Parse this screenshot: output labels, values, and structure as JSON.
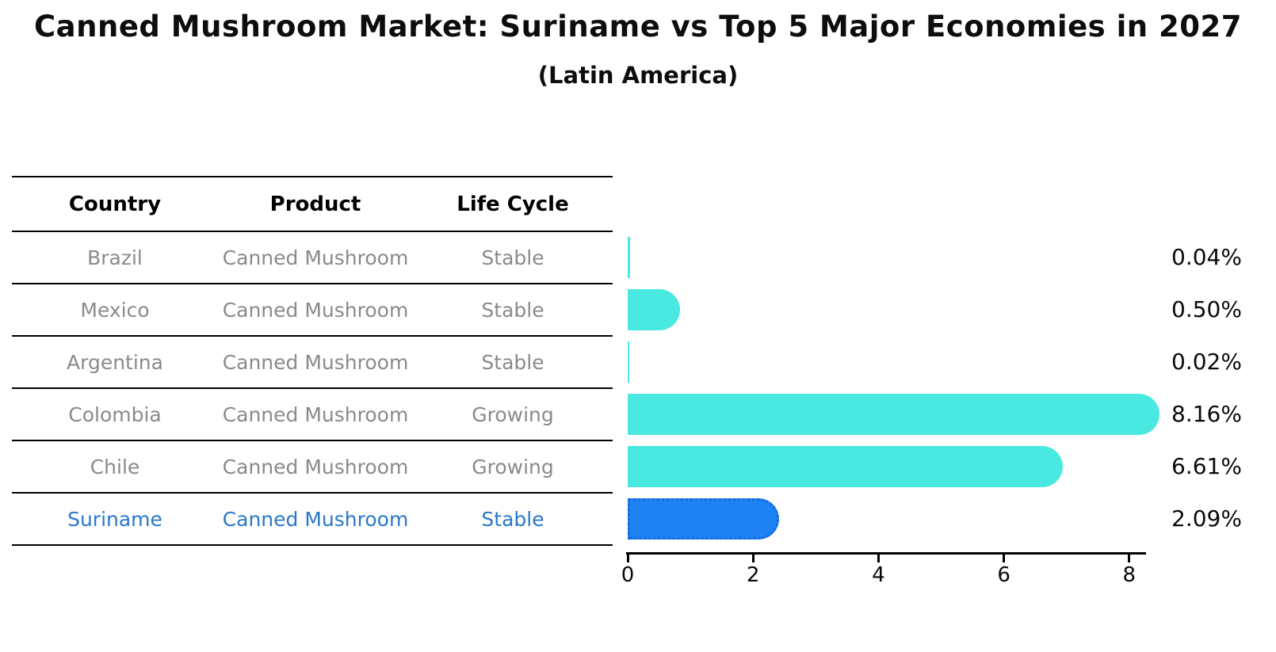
{
  "title": "Canned Mushroom Market: Suriname vs Top 5 Major Economies in 2027",
  "subtitle": "(Latin America)",
  "table": {
    "headers": [
      "Country",
      "Product",
      "Life Cycle"
    ],
    "rows": [
      {
        "country": "Brazil",
        "product": "Canned Mushroom",
        "life_cycle": "Stable",
        "highlight": false
      },
      {
        "country": "Mexico",
        "product": "Canned Mushroom",
        "life_cycle": "Stable",
        "highlight": false
      },
      {
        "country": "Argentina",
        "product": "Canned Mushroom",
        "life_cycle": "Stable",
        "highlight": false
      },
      {
        "country": "Colombia",
        "product": "Canned Mushroom",
        "life_cycle": "Growing",
        "highlight": false
      },
      {
        "country": "Chile",
        "product": "Canned Mushroom",
        "life_cycle": "Growing",
        "highlight": false
      },
      {
        "country": "Suriname",
        "product": "Canned Mushroom",
        "life_cycle": "Stable",
        "highlight": true
      }
    ]
  },
  "chart_data": {
    "type": "bar",
    "orientation": "horizontal",
    "title": "Canned Mushroom Market: Suriname vs Top 5 Major Economies in 2027",
    "subtitle": "(Latin America)",
    "categories": [
      "Brazil",
      "Mexico",
      "Argentina",
      "Colombia",
      "Chile",
      "Suriname"
    ],
    "values": [
      0.04,
      0.5,
      0.02,
      8.16,
      6.61,
      2.09
    ],
    "value_labels": [
      "0.04%",
      "0.50%",
      "0.02%",
      "8.16%",
      "6.61%",
      "2.09%"
    ],
    "xticks": [
      0,
      2,
      4,
      6,
      8
    ],
    "xlim": [
      0,
      8.7
    ],
    "xlabel": "",
    "ylabel": "",
    "grid": false,
    "legend": false,
    "highlight_index": 5
  },
  "colors": {
    "bar_default": "#49E9E1",
    "bar_highlight": "#1F82F2",
    "highlight_border": "#1668dc",
    "highlight_text": "#2979C9",
    "row_text": "#8a8a8a",
    "axis": "#000000"
  }
}
